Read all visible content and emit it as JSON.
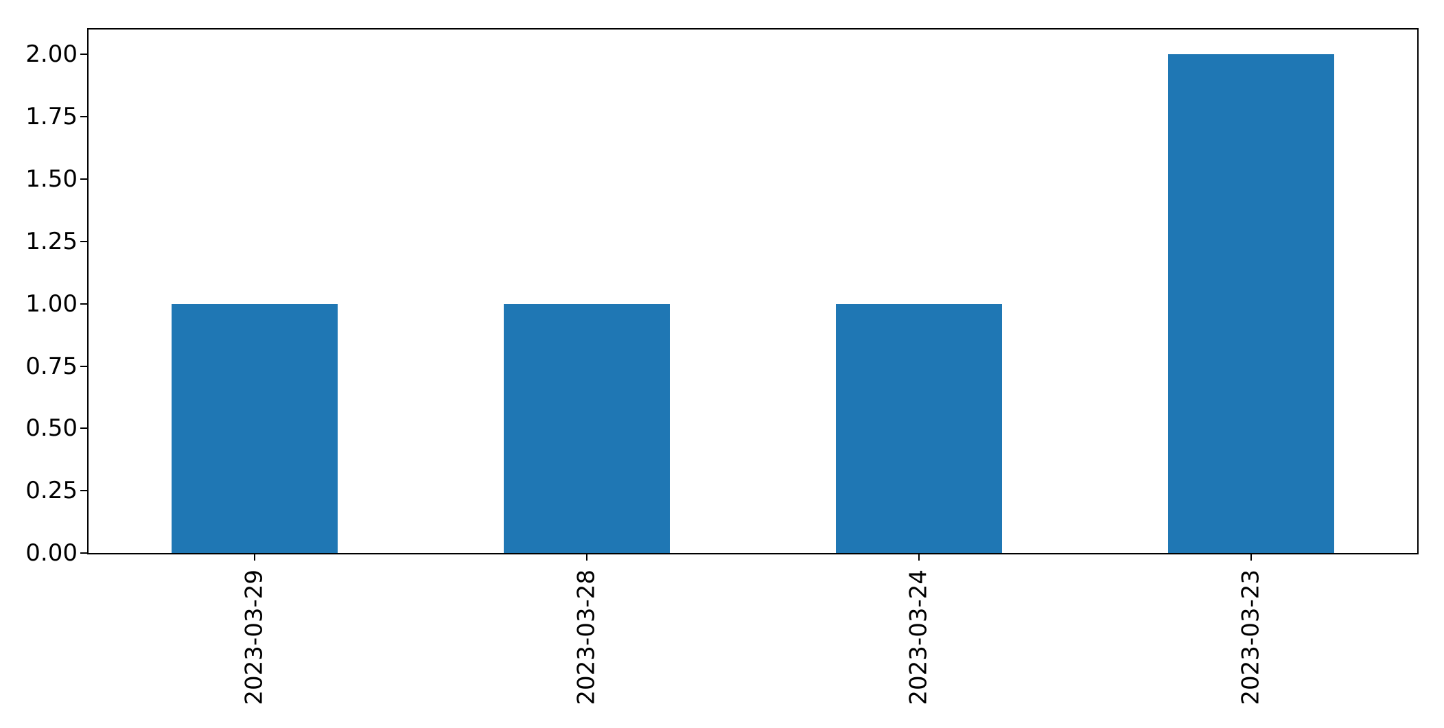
{
  "chart_data": {
    "type": "bar",
    "title": "",
    "xlabel": "",
    "ylabel": "",
    "categories": [
      "2023-03-29",
      "2023-03-28",
      "2023-03-24",
      "2023-03-23"
    ],
    "values": [
      1,
      1,
      1,
      2
    ],
    "ylim": [
      0,
      2.1
    ],
    "yticks": [
      {
        "value": 0.0,
        "label": "0.00"
      },
      {
        "value": 0.25,
        "label": "0.25"
      },
      {
        "value": 0.5,
        "label": "0.50"
      },
      {
        "value": 0.75,
        "label": "0.75"
      },
      {
        "value": 1.0,
        "label": "1.00"
      },
      {
        "value": 1.25,
        "label": "1.25"
      },
      {
        "value": 1.5,
        "label": "1.50"
      },
      {
        "value": 1.75,
        "label": "1.75"
      },
      {
        "value": 2.0,
        "label": "2.00"
      }
    ],
    "x_tick_rotation_deg": 90,
    "bar_width_fraction": 0.5,
    "grid": false,
    "legend": null,
    "colors": {
      "bar": "#1f77b4",
      "spine": "#000000",
      "tick_text": "#000000",
      "background": "#ffffff"
    }
  }
}
